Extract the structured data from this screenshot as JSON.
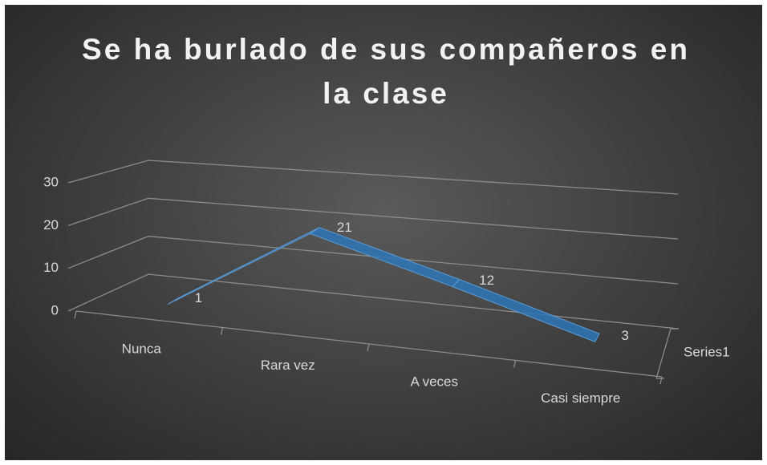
{
  "chart_data": {
    "type": "line3d",
    "title": "Se ha burlado de sus compañeros en la clase",
    "categories": [
      "Nunca",
      "Rara vez",
      "A veces",
      "Casi siempre"
    ],
    "series": [
      {
        "name": "Series1",
        "color": "#2e75b6",
        "values": [
          1,
          21,
          12,
          3
        ]
      }
    ],
    "ylim": [
      0,
      30
    ],
    "yticks": [
      0,
      10,
      20,
      30
    ],
    "grid": true
  }
}
